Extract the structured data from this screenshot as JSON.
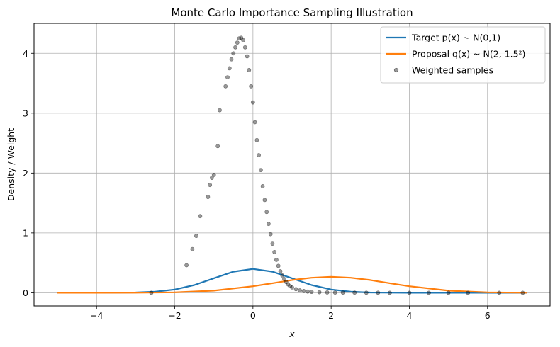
{
  "chart_data": {
    "type": "line",
    "title": "Monte Carlo Importance Sampling Illustration",
    "xlabel": "x",
    "ylabel": "Density / Weight",
    "xlim": [
      -5.6,
      7.6
    ],
    "ylim": [
      -0.22,
      4.5
    ],
    "xticks": [
      -4,
      -2,
      0,
      2,
      4,
      6
    ],
    "yticks": [
      0,
      1,
      2,
      3,
      4
    ],
    "grid": true,
    "legend_position": "top-right",
    "series": [
      {
        "name": "Target p(x) ~ N(0,1)",
        "kind": "line",
        "color": "#1f77b4",
        "x": [
          -5,
          -4,
          -3,
          -2.5,
          -2,
          -1.5,
          -1,
          -0.5,
          0,
          0.5,
          1,
          1.5,
          2,
          2.5,
          3,
          4,
          5,
          6,
          7
        ],
        "y": [
          0.0,
          0.0001,
          0.0044,
          0.0175,
          0.054,
          0.1295,
          0.242,
          0.352,
          0.399,
          0.352,
          0.242,
          0.1295,
          0.054,
          0.0175,
          0.0044,
          0.0001,
          0.0,
          0.0,
          0.0
        ]
      },
      {
        "name": "Proposal q(x) ~ N(2, 1.5²)",
        "kind": "line",
        "color": "#ff7f0e",
        "x": [
          -5,
          -4,
          -3,
          -2,
          -1,
          0,
          0.5,
          1,
          1.5,
          2,
          2.5,
          3,
          3.5,
          4,
          5,
          6,
          7
        ],
        "y": [
          0.0,
          0.0001,
          0.001,
          0.007,
          0.036,
          0.109,
          0.16,
          0.213,
          0.251,
          0.266,
          0.251,
          0.213,
          0.16,
          0.109,
          0.036,
          0.007,
          0.001
        ]
      },
      {
        "name": "Weighted samples",
        "kind": "scatter",
        "color": "#000000",
        "x": [
          -2.6,
          -1.7,
          -1.55,
          -1.45,
          -1.35,
          -1.15,
          -1.1,
          -1.05,
          -1.0,
          -0.9,
          -0.85,
          -0.7,
          -0.65,
          -0.6,
          -0.55,
          -0.5,
          -0.45,
          -0.4,
          -0.35,
          -0.3,
          -0.25,
          -0.2,
          -0.15,
          -0.1,
          -0.05,
          0.0,
          0.05,
          0.1,
          0.15,
          0.2,
          0.25,
          0.3,
          0.35,
          0.4,
          0.45,
          0.5,
          0.55,
          0.6,
          0.65,
          0.7,
          0.75,
          0.8,
          0.85,
          0.9,
          0.95,
          1.0,
          1.1,
          1.2,
          1.3,
          1.4,
          1.5,
          1.7,
          1.9,
          2.1,
          2.3,
          2.6,
          2.9,
          3.2,
          3.5,
          4.0,
          4.5,
          5.0,
          5.5,
          6.3,
          6.9
        ],
        "y": [
          0.0,
          0.46,
          0.73,
          0.95,
          1.28,
          1.6,
          1.8,
          1.92,
          1.97,
          2.45,
          3.05,
          3.45,
          3.6,
          3.75,
          3.9,
          4.0,
          4.1,
          4.18,
          4.25,
          4.26,
          4.22,
          4.1,
          3.95,
          3.72,
          3.45,
          3.18,
          2.85,
          2.55,
          2.3,
          2.05,
          1.78,
          1.55,
          1.35,
          1.15,
          0.98,
          0.82,
          0.68,
          0.55,
          0.45,
          0.36,
          0.29,
          0.23,
          0.18,
          0.14,
          0.11,
          0.09,
          0.06,
          0.04,
          0.03,
          0.02,
          0.015,
          0.01,
          0.006,
          0.004,
          0.003,
          0.002,
          0.001,
          0.001,
          0.0,
          0.0,
          0.0,
          0.0,
          0.0,
          0.0,
          0.0
        ]
      }
    ]
  }
}
